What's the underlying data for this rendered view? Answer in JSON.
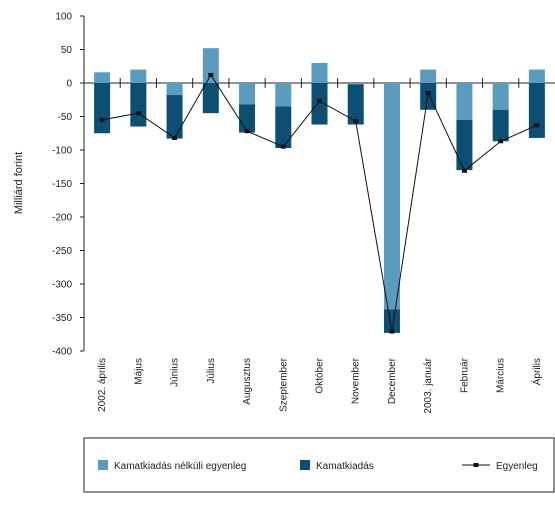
{
  "chart_data": {
    "type": "bar",
    "title": "",
    "ylabel": "Milliárd forint",
    "xlabel": "",
    "ylim": [
      -400,
      100
    ],
    "yticks": [
      100,
      50,
      0,
      -50,
      -100,
      -150,
      -200,
      -250,
      -300,
      -350,
      -400
    ],
    "categories": [
      "2002. április",
      "Május",
      "Június",
      "Július",
      "Augusztus",
      "Szeptember",
      "Október",
      "November",
      "December",
      "2003. január",
      "Február",
      "Március",
      "Április"
    ],
    "series": [
      {
        "name": "Kamatkiadás nélküli egyenleg",
        "kind": "bar",
        "color": "#5b9bbd",
        "values": [
          16,
          20,
          -18,
          52,
          -32,
          -35,
          30,
          -2,
          -338,
          20,
          -55,
          -40,
          20
        ]
      },
      {
        "name": "Kamatkiadás",
        "kind": "bar",
        "color": "#0d4f73",
        "values": [
          -75,
          -65,
          -65,
          -45,
          -42,
          -62,
          -62,
          -60,
          -35,
          -40,
          -75,
          -47,
          -82
        ]
      },
      {
        "name": "Egyenleg",
        "kind": "line",
        "color": "#111111",
        "values": [
          -55,
          -45,
          -82,
          12,
          -72,
          -95,
          -27,
          -57,
          -371,
          -15,
          -131,
          -87,
          -63
        ]
      }
    ],
    "grid": false,
    "legend_position": "bottom"
  }
}
